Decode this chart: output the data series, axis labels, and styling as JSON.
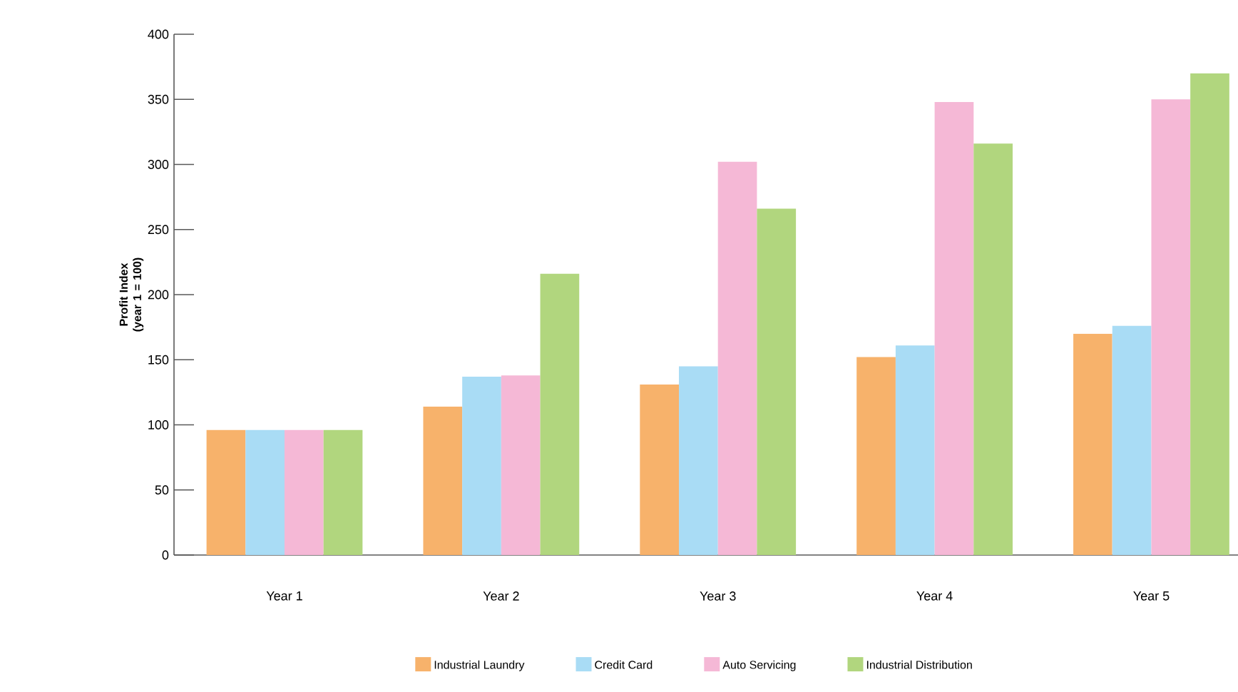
{
  "chart_data": {
    "type": "bar",
    "ylabel": "Profit Index (year 1 = 100)",
    "categories": [
      "Year 1",
      "Year 2",
      "Year 3",
      "Year 4",
      "Year 5"
    ],
    "series": [
      {
        "name": "Industrial Laundry",
        "color": "#f7b26b",
        "values": [
          96,
          114,
          131,
          152,
          170
        ]
      },
      {
        "name": "Credit Card",
        "color": "#a9dcf5",
        "values": [
          96,
          137,
          145,
          161,
          176
        ]
      },
      {
        "name": "Auto Servicing",
        "color": "#f5b8d6",
        "values": [
          96,
          138,
          302,
          348,
          350
        ]
      },
      {
        "name": "Industrial Distribution",
        "color": "#b1d67e",
        "values": [
          96,
          216,
          266,
          316,
          370
        ]
      }
    ],
    "ylim": [
      0,
      400
    ],
    "yticks": [
      0,
      50,
      100,
      150,
      200,
      250,
      300,
      350,
      400
    ],
    "grid": false,
    "legend": "bottom"
  }
}
